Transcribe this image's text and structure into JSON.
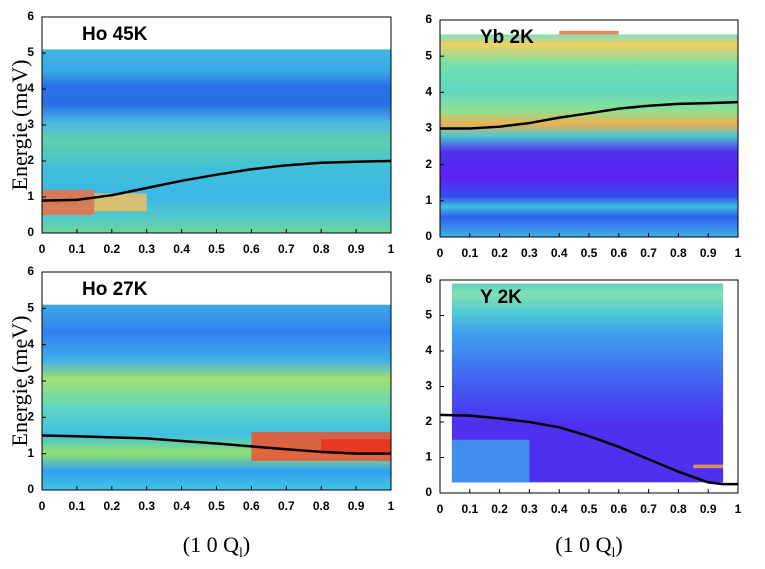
{
  "chart_data": [
    {
      "type": "line",
      "title": "Ho 45K",
      "ylabel": "Energie (meV)",
      "x": [
        0,
        0.1,
        0.2,
        0.3,
        0.4,
        0.5,
        0.6,
        0.7,
        0.8,
        0.9,
        1
      ],
      "series": [
        {
          "color": "#000000",
          "values": [
            0.9,
            0.92,
            1.05,
            1.25,
            1.45,
            1.62,
            1.77,
            1.88,
            1.95,
            1.98,
            2.0
          ]
        }
      ],
      "xlim": [
        0,
        1
      ],
      "ylim": [
        0,
        6
      ],
      "xticks": [
        0,
        0.1,
        0.2,
        0.3,
        0.4,
        0.5,
        0.6,
        0.7,
        0.8,
        0.9,
        1
      ],
      "yticks": [
        0,
        1,
        2,
        3,
        4,
        5,
        6
      ]
    },
    {
      "type": "line",
      "title": "Yb  2K",
      "x": [
        0,
        0.1,
        0.2,
        0.3,
        0.4,
        0.5,
        0.6,
        0.7,
        0.8,
        0.9,
        1
      ],
      "series": [
        {
          "color": "#000000",
          "values": [
            3.0,
            3.0,
            3.05,
            3.15,
            3.3,
            3.42,
            3.55,
            3.63,
            3.68,
            3.7,
            3.73
          ]
        }
      ],
      "xlim": [
        0,
        1
      ],
      "ylim": [
        0,
        6
      ],
      "xticks": [
        0,
        0.1,
        0.2,
        0.3,
        0.4,
        0.5,
        0.6,
        0.7,
        0.8,
        0.9,
        1
      ],
      "yticks": [
        0,
        1,
        2,
        3,
        4,
        5,
        6
      ]
    },
    {
      "type": "line",
      "title": "Ho 27K",
      "ylabel": "Energie (meV)",
      "xlabel": [
        "(1 0 Q",
        "l",
        ")"
      ],
      "x": [
        0,
        0.1,
        0.2,
        0.3,
        0.4,
        0.5,
        0.6,
        0.7,
        0.8,
        0.9,
        1
      ],
      "series": [
        {
          "color": "#000000",
          "values": [
            1.5,
            1.48,
            1.45,
            1.42,
            1.35,
            1.28,
            1.2,
            1.12,
            1.05,
            1.0,
            1.0
          ]
        }
      ],
      "xlim": [
        0,
        1
      ],
      "ylim": [
        0,
        6
      ],
      "xticks": [
        0,
        0.1,
        0.2,
        0.3,
        0.4,
        0.5,
        0.6,
        0.7,
        0.8,
        0.9,
        1
      ],
      "yticks": [
        0,
        1,
        2,
        3,
        4,
        5,
        6
      ]
    },
    {
      "type": "line",
      "title": "Y  2K",
      "xlabel": [
        "(1 0 Q",
        "l",
        ")"
      ],
      "x": [
        0,
        0.1,
        0.2,
        0.3,
        0.4,
        0.5,
        0.6,
        0.7,
        0.8,
        0.9,
        0.95,
        1
      ],
      "series": [
        {
          "color": "#000000",
          "values": [
            2.2,
            2.18,
            2.1,
            2.0,
            1.85,
            1.6,
            1.3,
            0.95,
            0.6,
            0.3,
            0.25,
            0.25
          ]
        }
      ],
      "xlim": [
        0,
        1
      ],
      "ylim": [
        0,
        6
      ],
      "xticks": [
        0,
        0.1,
        0.2,
        0.3,
        0.4,
        0.5,
        0.6,
        0.7,
        0.8,
        0.9,
        1
      ],
      "yticks": [
        0,
        1,
        2,
        3,
        4,
        5,
        6
      ]
    }
  ]
}
